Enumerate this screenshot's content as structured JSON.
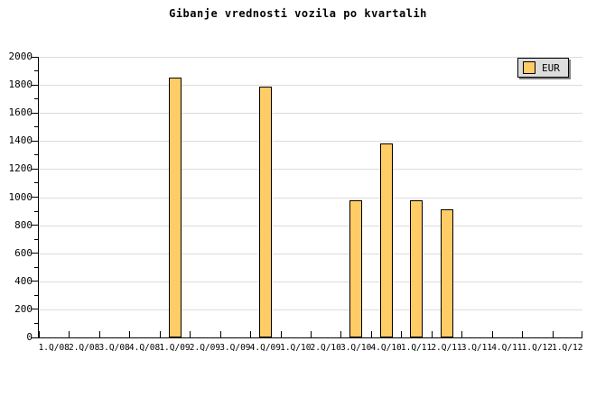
{
  "title": "Gibanje vrednosti vozila po kvartalih",
  "legend": {
    "items": [
      {
        "label": "EUR",
        "swatch_color": "#FFCC66"
      }
    ]
  },
  "chart_data": {
    "type": "bar",
    "title": "Gibanje vrednosti vozila po kvartalih",
    "categories": [
      "1.Q/08",
      "2.Q/08",
      "3.Q/08",
      "4.Q/08",
      "1.Q/09",
      "2.Q/09",
      "3.Q/09",
      "4.Q/09",
      "1.Q/10",
      "2.Q/10",
      "3.Q/10",
      "4.Q/10",
      "1.Q/11",
      "2.Q/11",
      "3.Q/11",
      "4.Q/11",
      "1.Q/12",
      "1.Q/12"
    ],
    "series": [
      {
        "name": "EUR",
        "values": [
          null,
          null,
          null,
          null,
          1850,
          null,
          null,
          1785,
          null,
          null,
          980,
          1380,
          980,
          915,
          null,
          null,
          null,
          null
        ]
      }
    ],
    "xlabel": "",
    "ylabel": "",
    "ylim": [
      0,
      2000
    ],
    "ytick_step": 200,
    "y_minor_step": 100,
    "grid": "horizontal-major",
    "legend_position": "top-right",
    "colors": {
      "bar_fill": "#FFCC66",
      "bar_border": "#000000",
      "grid": "#DCDCDC",
      "axis": "#000000",
      "background": "#FFFFFF",
      "legend_fill": "#DCDCDC",
      "legend_shadow": "#808080"
    }
  }
}
